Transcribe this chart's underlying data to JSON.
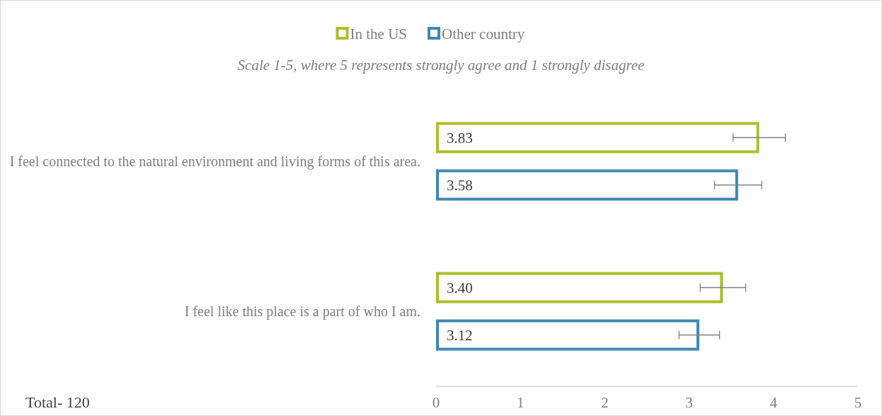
{
  "chart_data": {
    "type": "bar",
    "orientation": "horizontal",
    "subtitle": "Scale 1-5, where 5 represents strongly agree and 1 strongly disagree",
    "categories": [
      "I feel connected to the natural environment and living forms of this area.",
      "I feel like this place is a part of who I am."
    ],
    "series": [
      {
        "name": "In the US",
        "color": "#a9bf2c",
        "values": [
          3.83,
          3.4
        ],
        "errors": [
          0.31,
          0.27
        ],
        "value_labels": [
          "3.83",
          "3.40"
        ]
      },
      {
        "name": "Other country",
        "color": "#3d88b0",
        "values": [
          3.58,
          3.12
        ],
        "errors": [
          0.28,
          0.24
        ],
        "value_labels": [
          "3.58",
          "3.12"
        ]
      }
    ],
    "xlim": [
      0,
      5
    ],
    "xticks": [
      0,
      1,
      2,
      3,
      4,
      5
    ],
    "grid": false,
    "legend": "top",
    "annotations": [
      "Total- 120"
    ]
  }
}
